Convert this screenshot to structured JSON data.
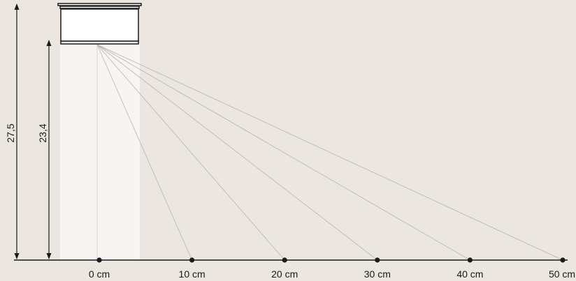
{
  "dimensions": {
    "outer_height": "27,5",
    "inner_height": "23,4"
  },
  "distance_markers": [
    {
      "value": 0,
      "label": "0 cm"
    },
    {
      "value": 10,
      "label": "10 cm"
    },
    {
      "value": 20,
      "label": "20 cm"
    },
    {
      "value": 30,
      "label": "30 cm"
    },
    {
      "value": 40,
      "label": "40 cm"
    },
    {
      "value": 50,
      "label": "50 cm"
    }
  ],
  "colors": {
    "background": "#ebe6e0",
    "lamp_body": "#ffffff",
    "lines": "#1a1a1a",
    "light_rays": "#b8b3ad"
  }
}
